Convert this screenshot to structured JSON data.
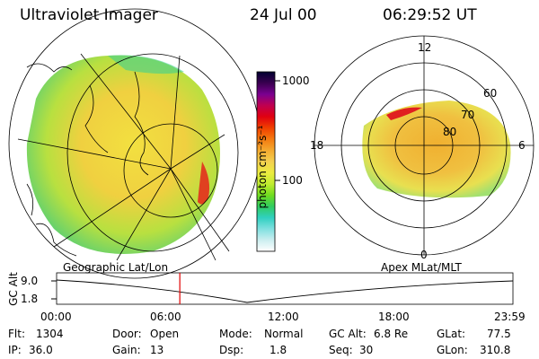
{
  "header": {
    "instrument": "Ultraviolet Imager",
    "date": "24 Jul 00",
    "time": "06:29:52 UT"
  },
  "colorbar": {
    "label": "photon cm⁻²s⁻¹",
    "ticks": [
      "1000",
      "100"
    ],
    "colors": [
      "#000030",
      "#3a0050",
      "#7a0090",
      "#c00050",
      "#e00010",
      "#f04000",
      "#f47a10",
      "#f4aa30",
      "#f4d050",
      "#ecec40",
      "#c0ec30",
      "#70dc20",
      "#30cc60",
      "#30d0c0",
      "#80e0e0",
      "#cceef0",
      "#ffffff"
    ]
  },
  "polar_plot": {
    "mlt_labels": [
      "12",
      "18",
      "6",
      "0"
    ],
    "mlat_labels": [
      "60",
      "70",
      "80"
    ]
  },
  "timeline": {
    "left_label": "Geographic Lat/Lon",
    "right_label": "Apex MLat/MLT",
    "axis_label": "GC Alt",
    "y_ticks": [
      "9.0",
      "1.8"
    ],
    "x_ticks": [
      "00:00",
      "06:00",
      "12:00",
      "18:00",
      "23:59"
    ],
    "current_time_fraction": 0.27,
    "marker_color": "#e00000"
  },
  "info": {
    "flt_label": "Flt:",
    "flt_value": "1304",
    "ip_label": "IP:",
    "ip_value": "36.0",
    "door_label": "Door:",
    "door_value": "Open",
    "gain_label": "Gain:",
    "gain_value": "13",
    "mode_label": "Mode:",
    "mode_value": "Normal",
    "dsp_label": "Dsp:",
    "dsp_value": "1.8",
    "gcalt_label": "GC Alt:",
    "gcalt_value": "6.8 Re",
    "seq_label": "Seq:",
    "seq_value": "30",
    "glat_label": "GLat:",
    "glat_value": "77.5",
    "glon_label": "GLon:",
    "glon_value": "310.8"
  }
}
